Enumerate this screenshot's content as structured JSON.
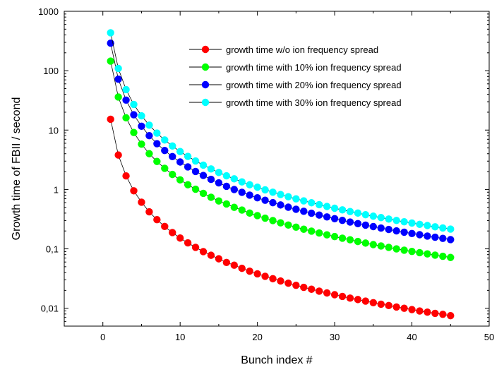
{
  "chart_data": {
    "type": "scatter",
    "title": "",
    "xlabel": "Bunch index #",
    "ylabel": "Growth time of FBII / second",
    "xlim": [
      -5,
      50
    ],
    "ylim": [
      0.005,
      1000
    ],
    "yscale": "log",
    "x_ticks": [
      0,
      10,
      20,
      30,
      40,
      50
    ],
    "x_tick_labels": [
      "0",
      "10",
      "20",
      "30",
      "40",
      "50"
    ],
    "y_ticks": [
      0.01,
      0.1,
      1,
      10,
      100,
      1000
    ],
    "y_tick_labels": [
      "0,01",
      "0,1",
      "1",
      "10",
      "100",
      "1000"
    ],
    "grid": false,
    "legend_position": "top-right",
    "x": [
      1,
      2,
      3,
      4,
      5,
      6,
      7,
      8,
      9,
      10,
      11,
      12,
      13,
      14,
      15,
      16,
      17,
      18,
      19,
      20,
      21,
      22,
      23,
      24,
      25,
      26,
      27,
      28,
      29,
      30,
      31,
      32,
      33,
      34,
      35,
      36,
      37,
      38,
      39,
      40,
      41,
      42,
      43,
      44,
      45
    ],
    "series": [
      {
        "name": "growth time w/o ion frequency spread",
        "color": "#ff0000",
        "values": [
          15.2,
          3.8,
          1.69,
          0.95,
          0.61,
          0.42,
          0.31,
          0.238,
          0.188,
          0.152,
          0.126,
          0.106,
          0.09,
          0.078,
          0.068,
          0.059,
          0.053,
          0.047,
          0.042,
          0.038,
          0.0345,
          0.0314,
          0.0288,
          0.0264,
          0.0243,
          0.0225,
          0.0209,
          0.0194,
          0.0181,
          0.0169,
          0.0158,
          0.0148,
          0.014,
          0.0132,
          0.0124,
          0.0117,
          0.0111,
          0.0105,
          0.01,
          0.0095,
          0.009,
          0.0086,
          0.0082,
          0.0079,
          0.0075
        ]
      },
      {
        "name": "growth time with 10% ion frequency spread",
        "color": "#00ff00",
        "values": [
          145,
          36,
          16.1,
          9.1,
          5.8,
          4.0,
          2.96,
          2.27,
          1.79,
          1.45,
          1.2,
          1.01,
          0.86,
          0.74,
          0.64,
          0.57,
          0.5,
          0.45,
          0.4,
          0.363,
          0.329,
          0.3,
          0.274,
          0.252,
          0.232,
          0.214,
          0.199,
          0.185,
          0.172,
          0.161,
          0.151,
          0.142,
          0.133,
          0.125,
          0.118,
          0.112,
          0.106,
          0.1,
          0.095,
          0.0906,
          0.0862,
          0.0822,
          0.0784,
          0.0749,
          0.0716
        ]
      },
      {
        "name": "growth time with 20% ion frequency spread",
        "color": "#0000ff",
        "values": [
          290,
          72,
          32,
          18.1,
          11.6,
          8.05,
          5.9,
          4.53,
          3.58,
          2.9,
          2.4,
          2.01,
          1.72,
          1.48,
          1.29,
          1.13,
          1.0,
          0.895,
          0.803,
          0.725,
          0.658,
          0.599,
          0.548,
          0.503,
          0.464,
          0.429,
          0.398,
          0.37,
          0.345,
          0.322,
          0.302,
          0.283,
          0.266,
          0.251,
          0.237,
          0.224,
          0.212,
          0.201,
          0.191,
          0.181,
          0.173,
          0.164,
          0.157,
          0.15,
          0.143
        ]
      },
      {
        "name": "growth time with 30% ion frequency spread",
        "color": "#00ffff",
        "values": [
          435,
          109,
          48,
          27,
          17.4,
          12.1,
          8.9,
          6.8,
          5.4,
          4.35,
          3.6,
          3.02,
          2.57,
          2.22,
          1.93,
          1.7,
          1.51,
          1.34,
          1.2,
          1.09,
          0.986,
          0.899,
          0.822,
          0.755,
          0.696,
          0.643,
          0.597,
          0.555,
          0.517,
          0.483,
          0.453,
          0.425,
          0.4,
          0.376,
          0.355,
          0.336,
          0.318,
          0.301,
          0.286,
          0.272,
          0.259,
          0.247,
          0.235,
          0.225,
          0.215
        ]
      }
    ]
  }
}
